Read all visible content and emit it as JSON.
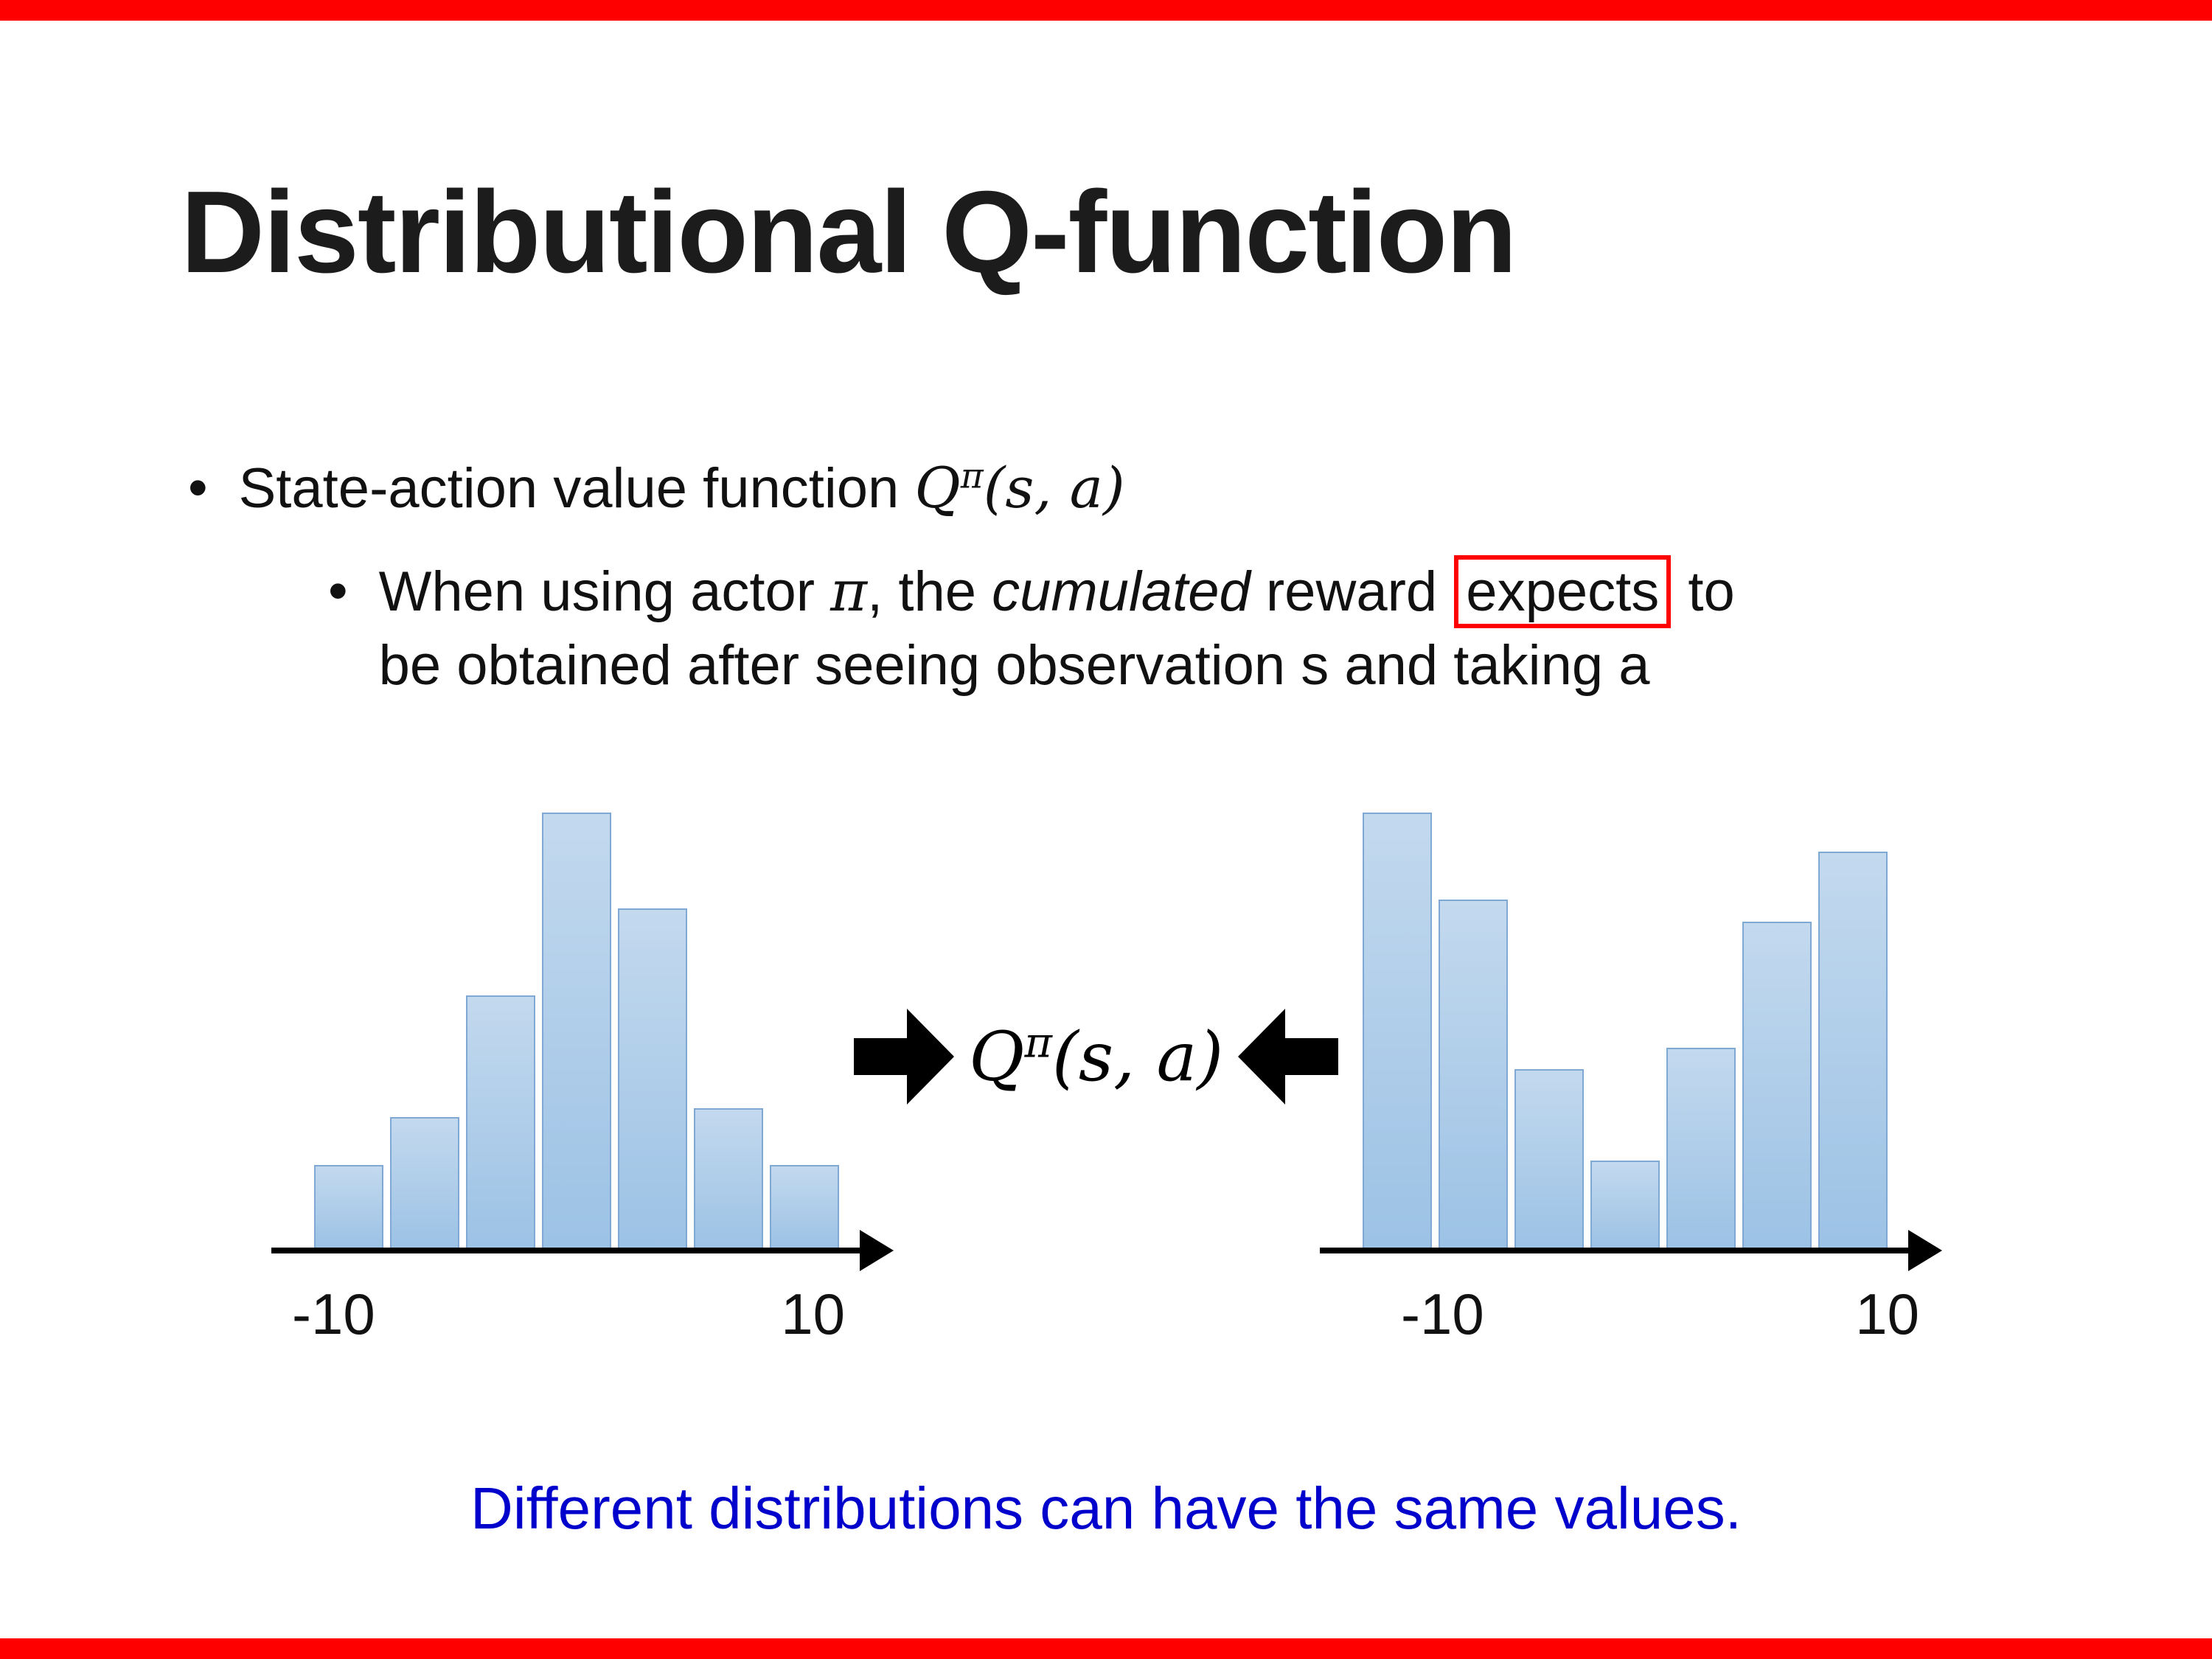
{
  "slide": {
    "accent_color": "#FF0000",
    "title": "Distributional Q-function",
    "bullets": {
      "marker": "•",
      "b1_text": "State-action value function ",
      "b1_formula": {
        "base": "Q",
        "sup": "π",
        "args": "(s, a)"
      },
      "b2_seg1": "When using actor ",
      "b2_pi": "π",
      "b2_seg2": ", the ",
      "b2_italic": "cumulated",
      "b2_seg3": " reward ",
      "b2_boxed": "expects",
      "b2_seg4": " to",
      "b2_seg5": "be obtained after seeing observation s and taking a"
    },
    "center_formula": {
      "base": "Q",
      "sup": "π",
      "args": "(s, a)"
    },
    "footer": {
      "text": "Different distributions can have the same values.",
      "color": "#0000CC"
    }
  },
  "chart_data": [
    {
      "type": "bar",
      "name": "left-histogram",
      "description": "unimodal return distribution over cumulated reward",
      "values": [
        0.19,
        0.3,
        0.58,
        1.0,
        0.78,
        0.32,
        0.19
      ],
      "x_min_label": "-10",
      "x_max_label": "10",
      "xlim": [
        -10,
        10
      ],
      "bar_fill_top": "#c3d9ee",
      "bar_fill_bottom": "#9cc2e5",
      "bar_border": "#7fa8d4"
    },
    {
      "type": "bar",
      "name": "right-histogram",
      "description": "bimodal return distribution over cumulated reward",
      "values": [
        1.0,
        0.8,
        0.41,
        0.2,
        0.46,
        0.75,
        0.91
      ],
      "x_min_label": "-10",
      "x_max_label": "10",
      "xlim": [
        -10,
        10
      ],
      "bar_fill_top": "#c3d9ee",
      "bar_fill_bottom": "#9cc2e5",
      "bar_border": "#7fa8d4"
    }
  ]
}
